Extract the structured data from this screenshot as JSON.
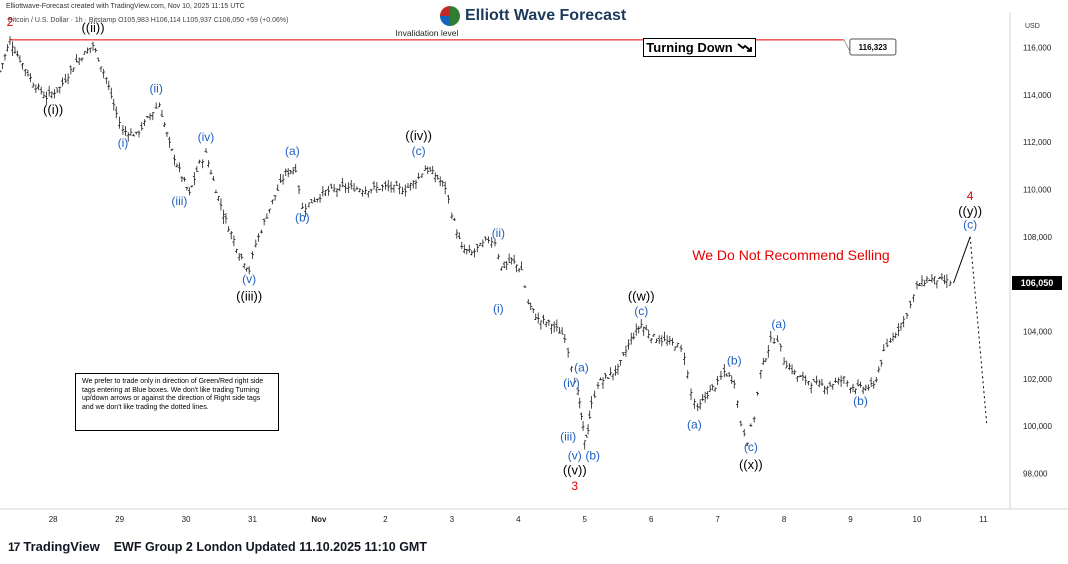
{
  "header": {
    "attribution": "Elliottwave-Forecast created with TradingView.com, Nov 10, 2025 11:15 UTC",
    "symbol_line": "Bitcoin / U.S. Dollar · 1h · Bitstamp  O105,983  H106,114  L105,937  C106,050  +59 (+0.06%)",
    "brand": "Elliott Wave Forecast",
    "brand_logo_icon": "ewf-globe-icon"
  },
  "turning_down": {
    "text": "Turning Down",
    "icon": "arrow-down-right-icon"
  },
  "note_box": "We prefer to trade only in direction of Green/Red right side tags entering at Blue boxes. We don't like trading Turning up/down arrows or against the direction of Right side tags and we don't like trading the dotted lines.",
  "footer": {
    "logo_icon": "tradingview-logo-icon",
    "logo_mark": "17",
    "tradingview": "TradingView",
    "update": "EWF Group 2 London Updated 11.10.2025 11:10 GMT"
  },
  "colors": {
    "red": "#e60000",
    "blue": "#1f5fbf",
    "black": "#000000",
    "candle": "#1a1a1a"
  },
  "chart_data": {
    "type": "line",
    "y_unit": "USD",
    "ylim": [
      96500,
      117500
    ],
    "y_ticks": [
      98000,
      100000,
      102000,
      104000,
      106000,
      108000,
      110000,
      112000,
      114000,
      116000
    ],
    "y_tick_labels": [
      "98,000",
      "100,000",
      "102,000",
      "104,000",
      "106,000",
      "108,000",
      "110,000",
      "112,000",
      "114,000",
      "116,000"
    ],
    "x_ticks": [
      "28",
      "29",
      "30",
      "31",
      "Nov",
      "2",
      "3",
      "4",
      "5",
      "6",
      "7",
      "8",
      "9",
      "10",
      "11"
    ],
    "xlim": [
      27.2,
      11.4
    ],
    "price_series": [
      [
        27.2,
        115000
      ],
      [
        27.35,
        116300
      ],
      [
        27.5,
        115500
      ],
      [
        27.7,
        114500
      ],
      [
        27.9,
        113900
      ],
      [
        28.1,
        114300
      ],
      [
        28.35,
        115400
      ],
      [
        28.6,
        116100
      ],
      [
        28.8,
        114700
      ],
      [
        28.95,
        113200
      ],
      [
        29.05,
        112500
      ],
      [
        29.25,
        112300
      ],
      [
        29.5,
        113300
      ],
      [
        29.6,
        113600
      ],
      [
        29.75,
        111900
      ],
      [
        29.9,
        110800
      ],
      [
        30.05,
        109800
      ],
      [
        30.2,
        111100
      ],
      [
        30.3,
        111500
      ],
      [
        30.45,
        110000
      ],
      [
        30.6,
        108700
      ],
      [
        30.8,
        107300
      ],
      [
        30.95,
        106600
      ],
      [
        31.05,
        107700
      ],
      [
        31.3,
        109500
      ],
      [
        31.5,
        110700
      ],
      [
        31.65,
        110900
      ],
      [
        31.75,
        109200
      ],
      [
        31.85,
        109400
      ],
      [
        32.1,
        109900
      ],
      [
        32.4,
        110100
      ],
      [
        32.7,
        110000
      ],
      [
        33.0,
        110100
      ],
      [
        33.3,
        110000
      ],
      [
        33.5,
        110500
      ],
      [
        33.6,
        110900
      ],
      [
        33.75,
        110600
      ],
      [
        33.9,
        110100
      ],
      [
        34.0,
        109000
      ],
      [
        34.15,
        107500
      ],
      [
        34.3,
        107300
      ],
      [
        34.55,
        107900
      ],
      [
        34.65,
        107800
      ],
      [
        34.75,
        106700
      ],
      [
        34.9,
        107000
      ],
      [
        35.05,
        106600
      ],
      [
        35.15,
        105200
      ],
      [
        35.3,
        104500
      ],
      [
        35.5,
        104300
      ],
      [
        35.7,
        103800
      ],
      [
        35.8,
        102600
      ],
      [
        35.9,
        101400
      ],
      [
        35.95,
        100400
      ],
      [
        36.0,
        99300
      ],
      [
        36.05,
        99900
      ],
      [
        36.1,
        100900
      ],
      [
        36.2,
        101800
      ],
      [
        36.35,
        102100
      ],
      [
        36.5,
        102400
      ],
      [
        36.7,
        103700
      ],
      [
        36.85,
        104300
      ],
      [
        37.0,
        103800
      ],
      [
        37.2,
        103600
      ],
      [
        37.4,
        103400
      ],
      [
        37.5,
        103000
      ],
      [
        37.6,
        101400
      ],
      [
        37.7,
        100700
      ],
      [
        37.85,
        101400
      ],
      [
        38.0,
        101800
      ],
      [
        38.1,
        102300
      ],
      [
        38.25,
        101900
      ],
      [
        38.35,
        100100
      ],
      [
        38.45,
        99400
      ],
      [
        38.55,
        100400
      ],
      [
        38.65,
        102300
      ],
      [
        38.8,
        103600
      ],
      [
        38.9,
        103700
      ],
      [
        39.0,
        102800
      ],
      [
        39.2,
        102100
      ],
      [
        39.45,
        101800
      ],
      [
        39.65,
        101700
      ],
      [
        39.9,
        102000
      ],
      [
        40.0,
        101700
      ],
      [
        40.15,
        101600
      ],
      [
        40.35,
        101700
      ],
      [
        40.5,
        103100
      ],
      [
        40.6,
        103600
      ],
      [
        40.8,
        104500
      ],
      [
        40.9,
        105100
      ],
      [
        41.0,
        105900
      ],
      [
        41.15,
        106200
      ],
      [
        41.3,
        106200
      ],
      [
        41.45,
        106100
      ],
      [
        41.55,
        106050
      ]
    ],
    "projection_solid": [
      [
        41.55,
        106050
      ],
      [
        41.8,
        108000
      ]
    ],
    "projection_dotted": [
      [
        41.8,
        108000
      ],
      [
        42.05,
        100100
      ]
    ],
    "invalidation": {
      "value": 116323,
      "label": "Invalidation level",
      "value_label": "116,323"
    },
    "current_price": {
      "value": 106050,
      "label": "106,050"
    },
    "annotations": [
      {
        "text": "2",
        "x": 27.35,
        "y": 116900,
        "color": "red"
      },
      {
        "text": "((ii))",
        "x": 28.6,
        "y": 116650,
        "color": "black"
      },
      {
        "text": "((i))",
        "x": 28.0,
        "y": 113200,
        "color": "black"
      },
      {
        "text": "(ii)",
        "x": 29.55,
        "y": 114100,
        "color": "blue"
      },
      {
        "text": "(i)",
        "x": 29.05,
        "y": 111800,
        "color": "blue"
      },
      {
        "text": "(iv)",
        "x": 30.3,
        "y": 112050,
        "color": "blue"
      },
      {
        "text": "(iii)",
        "x": 29.9,
        "y": 109350,
        "color": "blue"
      },
      {
        "text": "(v)",
        "x": 30.95,
        "y": 106050,
        "color": "blue"
      },
      {
        "text": "((iii))",
        "x": 30.95,
        "y": 105300,
        "color": "black"
      },
      {
        "text": "(a)",
        "x": 31.6,
        "y": 111450,
        "color": "blue"
      },
      {
        "text": "(b)",
        "x": 31.75,
        "y": 108650,
        "color": "blue"
      },
      {
        "text": "((iv))",
        "x": 33.5,
        "y": 112100,
        "color": "black"
      },
      {
        "text": "(c)",
        "x": 33.5,
        "y": 111450,
        "color": "blue"
      },
      {
        "text": "(ii)",
        "x": 34.7,
        "y": 108000,
        "color": "blue"
      },
      {
        "text": "(i)",
        "x": 34.7,
        "y": 104800,
        "color": "blue"
      },
      {
        "text": "(a)",
        "x": 35.95,
        "y": 102300,
        "color": "blue"
      },
      {
        "text": "(iv)",
        "x": 35.8,
        "y": 101650,
        "color": "blue"
      },
      {
        "text": "(iii)",
        "x": 35.75,
        "y": 99400,
        "color": "blue"
      },
      {
        "text": "(v)",
        "x": 35.85,
        "y": 98600,
        "color": "blue"
      },
      {
        "text": "(b)",
        "x": 36.12,
        "y": 98600,
        "color": "blue"
      },
      {
        "text": "((v))",
        "x": 35.85,
        "y": 97950,
        "color": "black"
      },
      {
        "text": "3",
        "x": 35.85,
        "y": 97300,
        "color": "red"
      },
      {
        "text": "((w))",
        "x": 36.85,
        "y": 105300,
        "color": "black"
      },
      {
        "text": "(c)",
        "x": 36.85,
        "y": 104700,
        "color": "blue"
      },
      {
        "text": "(a)",
        "x": 37.65,
        "y": 99900,
        "color": "blue"
      },
      {
        "text": "(b)",
        "x": 38.25,
        "y": 102600,
        "color": "blue"
      },
      {
        "text": "(c)",
        "x": 38.5,
        "y": 98950,
        "color": "blue"
      },
      {
        "text": "((x))",
        "x": 38.5,
        "y": 98200,
        "color": "black"
      },
      {
        "text": "(a)",
        "x": 38.92,
        "y": 104150,
        "color": "blue"
      },
      {
        "text": "(b)",
        "x": 40.15,
        "y": 100900,
        "color": "blue"
      },
      {
        "text": "4",
        "x": 41.8,
        "y": 109550,
        "color": "red"
      },
      {
        "text": "((y))",
        "x": 41.8,
        "y": 108900,
        "color": "black"
      },
      {
        "text": "(c)",
        "x": 41.8,
        "y": 108350,
        "color": "blue"
      }
    ],
    "warning": {
      "text": "We Do Not Recommend Selling",
      "color": "red"
    }
  }
}
